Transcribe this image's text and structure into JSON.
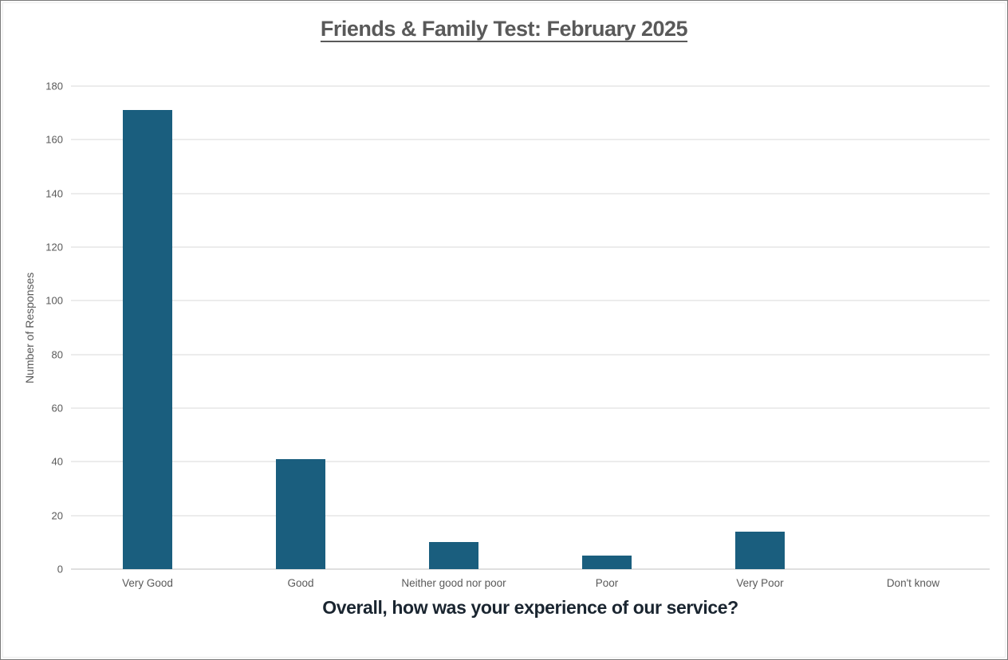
{
  "chart_data": {
    "type": "bar",
    "title": "Friends & Family Test: February 2025",
    "categories": [
      "Very Good",
      "Good",
      "Neither good nor poor",
      "Poor",
      "Very Poor",
      "Don't know"
    ],
    "values": [
      171,
      41,
      10,
      5,
      14,
      0
    ],
    "xlabel": "Overall, how was your experience of our service?",
    "ylabel": "Number of Responses",
    "ylim": [
      0,
      180
    ],
    "ytick_step": 20,
    "yticks": [
      0,
      20,
      40,
      60,
      80,
      100,
      120,
      140,
      160,
      180
    ],
    "grid": true,
    "legend": false,
    "colors": {
      "bar": "#1A5E7E",
      "gridline": "#D9D9D9",
      "axis_line": "#BFBFBF",
      "tick_label": "#595959",
      "title": "#595959",
      "axis_title": "#595959",
      "x_axis_title": "#1A2530",
      "border": "#7A7A7A"
    }
  }
}
